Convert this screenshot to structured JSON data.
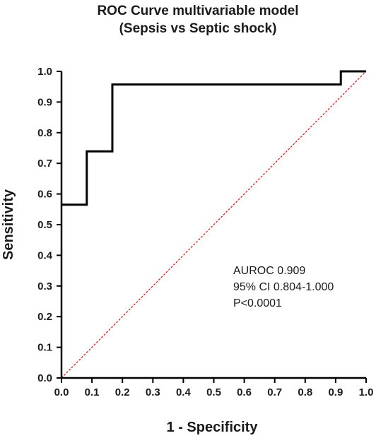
{
  "chart_data": {
    "type": "line",
    "title_lines": [
      "ROC Curve multivariable model",
      "(Sepsis vs Septic shock)"
    ],
    "xlabel": "1 - Specificity",
    "ylabel": "Sensitivity",
    "xlim": [
      0,
      1
    ],
    "ylim": [
      0,
      1
    ],
    "x_ticks": [
      "0.0",
      "0.1",
      "0.2",
      "0.3",
      "0.4",
      "0.5",
      "0.6",
      "0.7",
      "0.8",
      "0.9",
      "1.0"
    ],
    "y_ticks": [
      "0.0",
      "0.1",
      "0.2",
      "0.3",
      "0.4",
      "0.5",
      "0.6",
      "0.7",
      "0.8",
      "0.9",
      "1.0"
    ],
    "grid": false,
    "series": [
      {
        "style": "solid",
        "color": "#000000",
        "points": [
          [
            0.0,
            0.565
          ],
          [
            0.083,
            0.565
          ],
          [
            0.083,
            0.739
          ],
          [
            0.167,
            0.739
          ],
          [
            0.167,
            0.957
          ],
          [
            0.917,
            0.957
          ],
          [
            0.917,
            1.0
          ],
          [
            1.0,
            1.0
          ]
        ]
      },
      {
        "style": "dashed",
        "color": "#e02020",
        "points": [
          [
            0.0,
            0.0
          ],
          [
            1.0,
            1.0
          ]
        ]
      }
    ],
    "annotations": [
      "AUROC 0.909",
      "95% CI 0.804-1.000",
      "P<0.0001"
    ]
  }
}
